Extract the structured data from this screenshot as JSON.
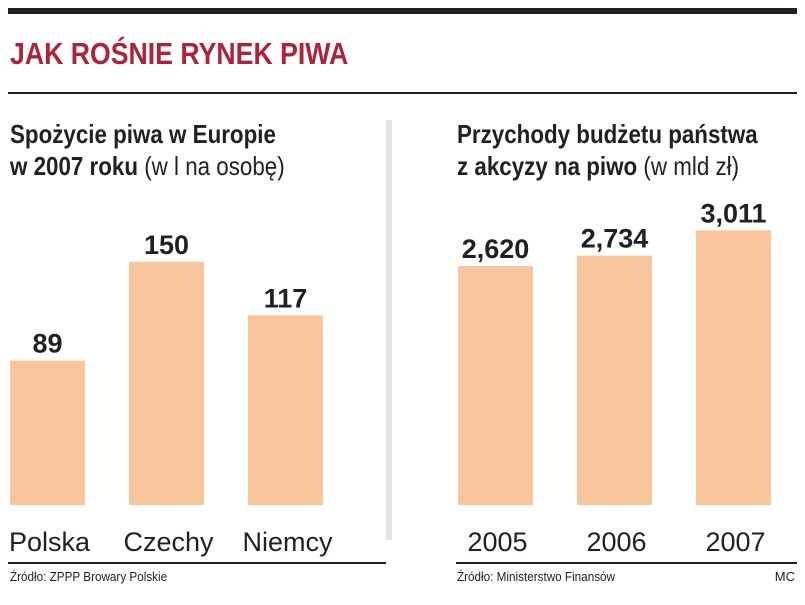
{
  "headline": "JAK ROŚNIE RYNEK PIWA",
  "credit": "MC",
  "colors": {
    "bar": "#f9c59a",
    "headline": "#b0223a",
    "text": "#231f20"
  },
  "chart_data": [
    {
      "type": "bar",
      "title_bold_line1": "Spożycie piwa w Europie",
      "title_bold_line2": "w 2007 roku",
      "title_unit": "(w l na osobę)",
      "categories": [
        "Polska",
        "Czechy",
        "Niemcy"
      ],
      "values": [
        89,
        150,
        117
      ],
      "value_labels": [
        "89",
        "150",
        "117"
      ],
      "ylim": [
        0,
        185
      ],
      "source": "Źródło: ZPPP Browary Polskie"
    },
    {
      "type": "bar",
      "title_bold_line1": "Przychody budżetu państwa",
      "title_bold_line2": "z akcyzy na piwo",
      "title_unit": "(w mld zł)",
      "categories": [
        "2005",
        "2006",
        "2007"
      ],
      "values": [
        2.62,
        2.734,
        3.011
      ],
      "value_labels": [
        "2,620",
        "2,734",
        "3,011"
      ],
      "ylim": [
        0,
        3.3
      ],
      "source": "Źródło: Ministerstwo Finansów"
    }
  ]
}
